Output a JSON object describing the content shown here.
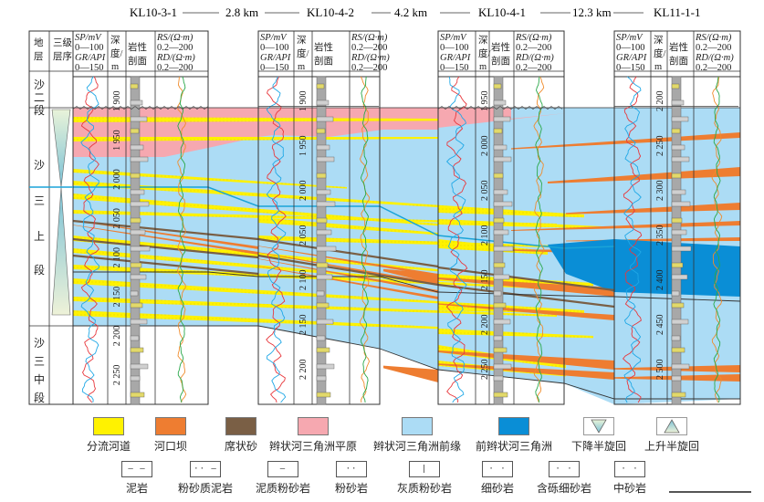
{
  "figure": {
    "wells": [
      {
        "name": "KL10-3-1",
        "depth_ticks": [
          "1 900",
          "1 950",
          "2 000",
          "2 050",
          "2 100",
          "2 150",
          "2 200",
          "2 250"
        ]
      },
      {
        "name": "KL10-4-2",
        "depth_ticks": [
          "1 900",
          "1 950",
          "2 000",
          "2 050",
          "2 100",
          "2 150",
          "2 200"
        ]
      },
      {
        "name": "KL10-4-1",
        "depth_ticks": [
          "1 950",
          "2 000",
          "2 050",
          "2 100",
          "2 150",
          "2 200",
          "2 250"
        ]
      },
      {
        "name": "KL11-1-1",
        "depth_ticks": [
          "2 200",
          "2 250",
          "2 300",
          "2 350",
          "2 400",
          "2 450",
          "2 500"
        ]
      }
    ],
    "distances": [
      "2.8 km",
      "4.2 km",
      "12.3 km"
    ],
    "headers": {
      "stratum": "地层",
      "stratum_c1": "地",
      "stratum_c2": "层",
      "sequence": "三级层序",
      "sequence_c1": "三级",
      "sequence_c2": "层序",
      "sp_label": "SP/mV",
      "sp_range": "0—100",
      "gr_label": "GR/API",
      "gr_range": "0—150",
      "depth_c1": "深",
      "depth_c2": "度/",
      "depth_c3": "m",
      "lith_c1": "岩性",
      "lith_c2": "剖面",
      "rs_label": "RS/(Ω·m)",
      "rs_range": "0.2—200",
      "rd_label": "RD/(Ω·m)",
      "rd_range": "0.2—200"
    },
    "units": {
      "sha2": [
        "沙",
        "二",
        "段"
      ],
      "sha3_upper": [
        "沙",
        "三",
        "上",
        "段"
      ],
      "sha3_middle": [
        "沙",
        "三",
        "中",
        "段"
      ]
    },
    "colors": {
      "distributary_channel": "#fff200",
      "mouth_bar": "#ee7d31",
      "sheet_sand": "#7a5f45",
      "plain": "#f6a8b0",
      "front": "#acdcf5",
      "prodelta": "#0a8ed6",
      "sp_curve": "#e8383d",
      "gr_curve": "#20a8e6",
      "rs_curve": "#f08c2c",
      "rd_curve": "#2aa84a"
    }
  },
  "legend": {
    "facies": [
      {
        "label": "分流河道",
        "color": "#fff200"
      },
      {
        "label": "河口坝",
        "color": "#ee7d31"
      },
      {
        "label": "席状砂",
        "color": "#7a5f45"
      },
      {
        "label": "辫状河三角洲平原",
        "color": "#f6a8b0"
      },
      {
        "label": "辫状河三角洲前缘",
        "color": "#acdcf5"
      },
      {
        "label": "前辫状河三角洲",
        "color": "#0a8ed6"
      },
      {
        "label": "下降半旋回",
        "color": ""
      },
      {
        "label": "上升半旋回",
        "color": ""
      }
    ],
    "lithology": [
      {
        "label": "泥岩",
        "pattern": "— — —"
      },
      {
        "label": "粉砂质泥岩",
        "pattern": "·· — —"
      },
      {
        "label": "泥质粉砂岩",
        "pattern": "—·······"
      },
      {
        "label": "粉砂岩",
        "pattern": "·· ·· ··"
      },
      {
        "label": "灰质粉砂岩",
        "pattern": "| ····"
      },
      {
        "label": "细砂岩",
        "pattern": "· · · ·"
      },
      {
        "label": "含砾细砂岩",
        "pattern": "· · · ·"
      },
      {
        "label": "中砂岩",
        "pattern": "· · ·"
      }
    ]
  }
}
